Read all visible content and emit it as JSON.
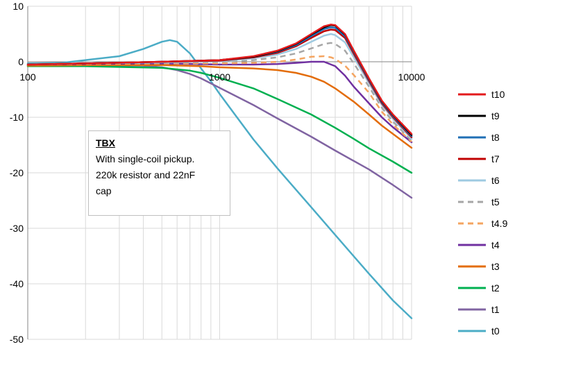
{
  "chart_data": {
    "type": "line",
    "x_scale": "log",
    "xlim": [
      100,
      10000
    ],
    "ylim": [
      -50,
      10
    ],
    "x_ticks": [
      "100",
      "1000",
      "10000"
    ],
    "y_ticks": [
      "10",
      "0",
      "-10",
      "-20",
      "-30",
      "-40",
      "-50"
    ],
    "grid": true,
    "legend_position": "right",
    "annotation": {
      "title": "TBX",
      "lines": [
        "With single-coil pickup.",
        "220k resistor and 22nF",
        "cap"
      ]
    },
    "series": [
      {
        "name": "t10",
        "color": "#e31a1c",
        "dash": false,
        "x": [
          100,
          200,
          500,
          1000,
          1500,
          2000,
          2500,
          3000,
          3500,
          3800,
          4000,
          4500,
          5000,
          6000,
          7000,
          8000,
          10000
        ],
        "y": [
          -0.5,
          -0.3,
          0.0,
          0.3,
          1.0,
          2.0,
          3.3,
          5.0,
          6.4,
          6.7,
          6.6,
          5.0,
          2.0,
          -3.0,
          -7.0,
          -9.5,
          -13.0
        ]
      },
      {
        "name": "t9",
        "color": "#000000",
        "dash": false,
        "x": [
          100,
          200,
          500,
          1000,
          1500,
          2000,
          2500,
          3000,
          3500,
          3800,
          4000,
          4500,
          5000,
          6000,
          7000,
          8000,
          10000
        ],
        "y": [
          -0.5,
          -0.3,
          0.0,
          0.3,
          0.9,
          1.9,
          3.2,
          4.9,
          6.2,
          6.6,
          6.5,
          4.9,
          1.9,
          -3.1,
          -7.1,
          -9.6,
          -13.2
        ]
      },
      {
        "name": "t8",
        "color": "#1f6fb5",
        "dash": false,
        "x": [
          100,
          200,
          500,
          1000,
          1500,
          2000,
          2500,
          3000,
          3500,
          3800,
          4000,
          4500,
          5000,
          6000,
          7000,
          8000,
          10000
        ],
        "y": [
          -0.5,
          -0.3,
          0.0,
          0.3,
          0.9,
          1.8,
          3.0,
          4.6,
          5.9,
          6.2,
          6.1,
          4.6,
          1.7,
          -3.3,
          -7.3,
          -9.8,
          -13.4
        ]
      },
      {
        "name": "t7",
        "color": "#c00000",
        "dash": false,
        "x": [
          100,
          200,
          500,
          1000,
          1500,
          2000,
          2500,
          3000,
          3500,
          3800,
          4000,
          4500,
          5000,
          6000,
          7000,
          8000,
          10000
        ],
        "y": [
          -0.5,
          -0.3,
          0.0,
          0.2,
          0.8,
          1.6,
          2.8,
          4.3,
          5.5,
          5.8,
          5.7,
          4.3,
          1.4,
          -3.5,
          -7.5,
          -10.0,
          -13.6
        ]
      },
      {
        "name": "t6",
        "color": "#9ecae1",
        "dash": false,
        "x": [
          100,
          200,
          500,
          1000,
          1500,
          2000,
          2500,
          3000,
          3500,
          3800,
          4000,
          4500,
          5000,
          6000,
          7000,
          8000,
          10000
        ],
        "y": [
          -0.5,
          -0.3,
          -0.1,
          0.1,
          0.6,
          1.3,
          2.3,
          3.6,
          4.7,
          5.0,
          4.8,
          3.5,
          0.8,
          -3.9,
          -7.8,
          -10.3,
          -13.9
        ]
      },
      {
        "name": "t5",
        "color": "#a6a6a6",
        "dash": true,
        "x": [
          100,
          200,
          500,
          1000,
          1500,
          2000,
          2500,
          3000,
          3500,
          3800,
          4000,
          4500,
          5000,
          6000,
          7000,
          8000,
          10000
        ],
        "y": [
          -0.5,
          -0.3,
          -0.2,
          0.0,
          0.3,
          0.8,
          1.5,
          2.4,
          3.2,
          3.4,
          3.2,
          2.0,
          -0.3,
          -4.5,
          -8.3,
          -10.8,
          -14.2
        ]
      },
      {
        "name": "t4.9",
        "color": "#f4a460",
        "dash": true,
        "x": [
          100,
          200,
          500,
          1000,
          1500,
          2000,
          2500,
          3000,
          3500,
          3800,
          4000,
          4500,
          5000,
          6000,
          7000,
          8000,
          10000
        ],
        "y": [
          -0.5,
          -0.4,
          -0.3,
          -0.3,
          -0.2,
          0.0,
          0.4,
          0.9,
          1.0,
          0.8,
          0.5,
          -0.7,
          -2.4,
          -5.6,
          -9.0,
          -11.3,
          -14.4
        ]
      },
      {
        "name": "t4",
        "color": "#7030a0",
        "dash": false,
        "x": [
          100,
          200,
          500,
          1000,
          1500,
          2000,
          2500,
          3000,
          3500,
          4000,
          4500,
          5000,
          6000,
          7000,
          8000,
          10000
        ],
        "y": [
          -0.5,
          -0.4,
          -0.3,
          -0.5,
          -0.5,
          -0.4,
          -0.2,
          0.0,
          0.0,
          -0.8,
          -2.5,
          -4.5,
          -7.5,
          -10.0,
          -11.8,
          -14.5
        ]
      },
      {
        "name": "t3",
        "color": "#e36c09",
        "dash": false,
        "x": [
          100,
          200,
          500,
          800,
          1000,
          1500,
          2000,
          2500,
          3000,
          3500,
          4000,
          5000,
          6000,
          7000,
          8000,
          10000
        ],
        "y": [
          -0.7,
          -0.6,
          -0.6,
          -0.8,
          -1.0,
          -1.2,
          -1.5,
          -2.0,
          -2.7,
          -3.6,
          -4.8,
          -7.2,
          -9.5,
          -11.5,
          -13.0,
          -15.5
        ]
      },
      {
        "name": "t2",
        "color": "#00b050",
        "dash": false,
        "x": [
          100,
          200,
          500,
          700,
          800,
          1000,
          1500,
          2000,
          3000,
          4000,
          5000,
          6000,
          8000,
          10000
        ],
        "y": [
          -0.8,
          -0.8,
          -1.1,
          -1.6,
          -2.0,
          -2.9,
          -4.8,
          -6.7,
          -9.5,
          -11.9,
          -13.9,
          -15.6,
          -18.0,
          -20.0
        ]
      },
      {
        "name": "t1",
        "color": "#8064a2",
        "dash": false,
        "x": [
          100,
          200,
          400,
          500,
          600,
          700,
          800,
          1000,
          1500,
          2000,
          3000,
          4000,
          6000,
          8000,
          10000
        ],
        "y": [
          -0.7,
          -0.6,
          -0.7,
          -1.0,
          -1.5,
          -2.2,
          -3.0,
          -4.7,
          -7.8,
          -10.2,
          -13.5,
          -16.0,
          -19.4,
          -22.2,
          -24.5
        ]
      },
      {
        "name": "t0",
        "color": "#4bacc6",
        "dash": false,
        "x": [
          100,
          150,
          200,
          300,
          400,
          500,
          550,
          600,
          700,
          800,
          900,
          1000,
          1200,
          1500,
          2000,
          3000,
          4000,
          6000,
          8000,
          10000
        ],
        "y": [
          -0.3,
          -0.2,
          0.3,
          1.0,
          2.3,
          3.6,
          3.9,
          3.6,
          1.5,
          -1.2,
          -3.5,
          -5.8,
          -9.5,
          -14.0,
          -19.2,
          -26.2,
          -31.2,
          -38.2,
          -43.0,
          -46.2
        ]
      }
    ]
  }
}
